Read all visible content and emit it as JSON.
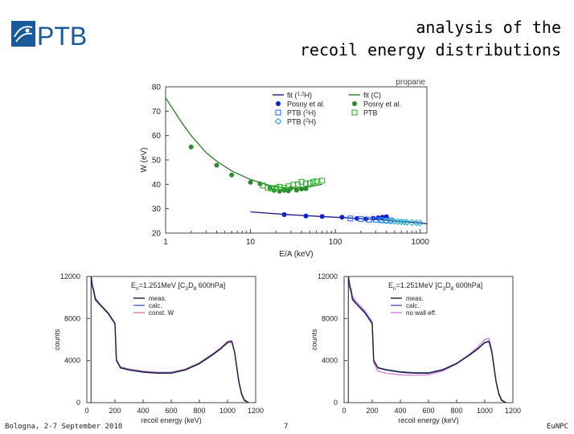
{
  "header": {
    "logo_text": "PTB",
    "title_line1": "analysis of the",
    "title_line2": "recoil energy distributions"
  },
  "footer": {
    "left": "Bologna, 2-7 September 2018",
    "page": "7",
    "right": "EuNPC"
  },
  "colors": {
    "brand_blue": "#1a5a9a",
    "fit_H": "#1a1a80",
    "fit_C": "#2a7a2a",
    "posny_H": "#1020d0",
    "posny_C": "#2a8a2a",
    "ptb_1H": "#3070ff",
    "ptb_2H": "#10a8c8",
    "ptb_C": "#30b030",
    "meas": "#1a1a3a",
    "calc": "#5060c0",
    "const_w": "#e08090",
    "no_wall": "#d080e0"
  },
  "chart_data": [
    {
      "type": "scatter",
      "title": "propane",
      "xlabel": "E/A (keV)",
      "ylabel": "W (eV)",
      "xscale": "log",
      "xlim": [
        1,
        1200
      ],
      "ylim": [
        20,
        80
      ],
      "xticks": [
        "1",
        "10",
        "100",
        "1000"
      ],
      "yticks": [
        "20",
        "30",
        "40",
        "50",
        "60",
        "70",
        "80"
      ],
      "legend_position": "top-right",
      "legend": [
        {
          "label": "fit (1,2H)",
          "text": "fit (",
          "sup": "1,2",
          "tail": "H)",
          "marker": "line",
          "color": "#1a1a80"
        },
        {
          "label": "Posny et al.",
          "text": "Posny et al.",
          "marker": "dot",
          "color": "#1020d0"
        },
        {
          "label": "PTB (1H)",
          "text": "PTB (",
          "sup": "1",
          "tail": "H)",
          "marker": "square",
          "color": "#3070ff"
        },
        {
          "label": "PTB (2H)",
          "text": "PTB (",
          "sup": "2",
          "tail": "H)",
          "marker": "diamond",
          "color": "#10a8c8"
        },
        {
          "label": "fit (C)",
          "text": "fit (C)",
          "marker": "line",
          "color": "#2a7a2a"
        },
        {
          "label": "Posny et al.",
          "text": "Posny et al.",
          "marker": "dot",
          "color": "#2a8a2a"
        },
        {
          "label": "PTB",
          "text": "PTB",
          "marker": "square",
          "color": "#30b030"
        }
      ],
      "series": [
        {
          "name": "fit (C)",
          "style": "line",
          "color": "#2a7a2a",
          "x": [
            1,
            1.5,
            2,
            3,
            4,
            6,
            8,
            10,
            15,
            20,
            30,
            40,
            50,
            70
          ],
          "y": [
            75.5,
            66,
            60,
            53,
            49.5,
            45.5,
            43.5,
            42,
            40,
            39,
            38.3,
            38.6,
            39,
            40
          ]
        },
        {
          "name": "fit (1,2H)",
          "style": "line",
          "color": "#1a1a80",
          "x": [
            10,
            30,
            100,
            300,
            1000,
            1200
          ],
          "y": [
            28.7,
            27.5,
            26.5,
            25.6,
            24.2,
            23.8
          ]
        },
        {
          "name": "Posny et al. (C)",
          "style": "dot",
          "color": "#2a8a2a",
          "x": [
            2,
            4,
            6,
            10,
            13,
            17,
            19,
            22,
            25,
            28,
            30,
            35,
            40,
            45
          ],
          "y": [
            55.3,
            47.8,
            43.8,
            40.8,
            40.2,
            38.5,
            37.5,
            37.2,
            37.5,
            37.3,
            38.4,
            37.6,
            38.1,
            38.2
          ]
        },
        {
          "name": "Posny et al. (H)",
          "style": "dot",
          "color": "#1020d0",
          "x": [
            25,
            45,
            70,
            120,
            180,
            230,
            280,
            320,
            360,
            400
          ],
          "y": [
            27.6,
            27,
            26.8,
            26.5,
            26,
            25.8,
            26.1,
            26.3,
            26.5,
            26.7
          ]
        },
        {
          "name": "PTB (C)",
          "style": "square",
          "color": "#30b030",
          "x": [
            14,
            16,
            18,
            20,
            22,
            25,
            28,
            32,
            36,
            40,
            45,
            50,
            55,
            60,
            70
          ],
          "y": [
            39.5,
            38.5,
            38.2,
            38.5,
            39,
            38.5,
            39.2,
            39.8,
            40,
            41,
            40.3,
            40.5,
            41,
            41.2,
            41.5
          ]
        },
        {
          "name": "PTB (1H)",
          "style": "square",
          "color": "#3070ff",
          "x": [
            150,
            200,
            250,
            300,
            350,
            400,
            450
          ],
          "y": [
            26,
            25.8,
            25.5,
            25.5,
            25.3,
            25.2,
            25.2
          ]
        },
        {
          "name": "PTB (2H)",
          "style": "diamond",
          "color": "#10a8c8",
          "x": [
            350,
            400,
            450,
            500,
            550,
            600,
            650,
            700,
            800,
            900,
            1000
          ],
          "y": [
            25.2,
            25,
            24.9,
            24.8,
            24.7,
            24.6,
            24.5,
            24.4,
            24.3,
            24.2,
            24.1
          ]
        }
      ]
    },
    {
      "type": "line",
      "annotation": "En=1.251MeV [C3D8 600hPa]",
      "annotation_main": "E",
      "annotation_sub": "n",
      "annotation_rest": "=1.251MeV [C",
      "annotation_sub2": "3",
      "annotation_mid": "D",
      "annotation_sub3": "8",
      "annotation_end": " 600hPa]",
      "xlabel": "recoil energy (keV)",
      "ylabel": "counts",
      "xlim": [
        0,
        1200
      ],
      "ylim": [
        0,
        12000
      ],
      "xticks": [
        "0",
        "200",
        "400",
        "600",
        "800",
        "1000",
        "1200"
      ],
      "yticks": [
        "0",
        "4000",
        "8000",
        "12000"
      ],
      "legend_position": "top-right",
      "series": [
        {
          "name": "meas.",
          "color": "#1a1a3a",
          "x": [
            30,
            40,
            50,
            60,
            80,
            100,
            150,
            200,
            210,
            240,
            300,
            400,
            500,
            600,
            700,
            800,
            900,
            950,
            1000,
            1030,
            1050,
            1080,
            1100,
            1120,
            1150
          ],
          "y": [
            12000,
            11000,
            10500,
            9800,
            9500,
            9200,
            8500,
            7500,
            4000,
            3300,
            3100,
            2900,
            2800,
            2800,
            3100,
            3700,
            4600,
            5100,
            5700,
            5800,
            4800,
            2000,
            800,
            200,
            0
          ]
        },
        {
          "name": "calc.",
          "color": "#5060c0",
          "x": [
            30,
            40,
            50,
            60,
            80,
            100,
            150,
            200,
            210,
            240,
            300,
            400,
            500,
            600,
            700,
            800,
            900,
            950,
            1000,
            1030,
            1050,
            1080,
            1100,
            1120,
            1150
          ],
          "y": [
            12000,
            11100,
            10600,
            9900,
            9550,
            9250,
            8550,
            7550,
            4050,
            3350,
            3150,
            2950,
            2850,
            2850,
            3150,
            3750,
            4650,
            5150,
            5750,
            5850,
            4850,
            2050,
            850,
            250,
            0
          ]
        },
        {
          "name": "const. W",
          "color": "#e08090",
          "x": [
            30,
            40,
            50,
            60,
            80,
            100,
            150,
            200,
            210,
            240,
            300,
            400,
            500,
            600,
            700,
            800,
            900,
            950,
            1000,
            1030,
            1050,
            1080,
            1100,
            1120,
            1150
          ],
          "y": [
            12000,
            11200,
            10700,
            10000,
            9600,
            9300,
            8600,
            7600,
            4100,
            3400,
            3200,
            3000,
            2900,
            2900,
            3200,
            3800,
            4700,
            5200,
            5850,
            5900,
            4900,
            2100,
            900,
            300,
            0
          ]
        }
      ]
    },
    {
      "type": "line",
      "annotation": "En=1.251MeV [C3D8 600hPa]",
      "annotation_main": "E",
      "annotation_sub": "n",
      "annotation_rest": "=1.251MeV [C",
      "annotation_sub2": "3",
      "annotation_mid": "D",
      "annotation_sub3": "8",
      "annotation_end": " 600hPa]",
      "xlabel": "recoil energy (keV)",
      "ylabel": "counts",
      "xlim": [
        0,
        1200
      ],
      "ylim": [
        0,
        12000
      ],
      "xticks": [
        "0",
        "200",
        "400",
        "600",
        "800",
        "1000",
        "1200"
      ],
      "yticks": [
        "0",
        "4000",
        "8000",
        "12000"
      ],
      "legend_position": "top-right",
      "series": [
        {
          "name": "meas.",
          "color": "#1a1a3a",
          "x": [
            30,
            40,
            50,
            60,
            80,
            100,
            150,
            200,
            210,
            240,
            300,
            400,
            500,
            600,
            700,
            800,
            900,
            950,
            1000,
            1030,
            1050,
            1080,
            1100,
            1120,
            1150
          ],
          "y": [
            12000,
            11000,
            10500,
            9800,
            9500,
            9200,
            8500,
            7500,
            4000,
            3300,
            3100,
            2900,
            2800,
            2800,
            3100,
            3700,
            4600,
            5100,
            5700,
            5800,
            4800,
            2000,
            800,
            200,
            0
          ]
        },
        {
          "name": "calc.",
          "color": "#5060c0",
          "x": [
            30,
            40,
            50,
            60,
            80,
            100,
            150,
            200,
            210,
            240,
            300,
            400,
            500,
            600,
            700,
            800,
            900,
            950,
            1000,
            1030,
            1050,
            1080,
            1100,
            1120,
            1150
          ],
          "y": [
            12000,
            11100,
            10600,
            9900,
            9550,
            9250,
            8550,
            7550,
            4050,
            3350,
            3150,
            2950,
            2850,
            2850,
            3150,
            3750,
            4650,
            5150,
            5750,
            5850,
            4850,
            2050,
            850,
            250,
            0
          ]
        },
        {
          "name": "no wall eff.",
          "color": "#d080e0",
          "x": [
            30,
            40,
            50,
            60,
            80,
            100,
            150,
            200,
            210,
            240,
            300,
            400,
            500,
            600,
            700,
            800,
            900,
            950,
            1000,
            1030,
            1050,
            1080,
            1100,
            1120,
            1150
          ],
          "y": [
            12000,
            11300,
            10800,
            10100,
            9700,
            9400,
            8700,
            7700,
            3800,
            3000,
            2800,
            2650,
            2600,
            2650,
            3000,
            3700,
            4700,
            5300,
            6000,
            6100,
            5000,
            2100,
            900,
            300,
            0
          ]
        }
      ]
    }
  ]
}
